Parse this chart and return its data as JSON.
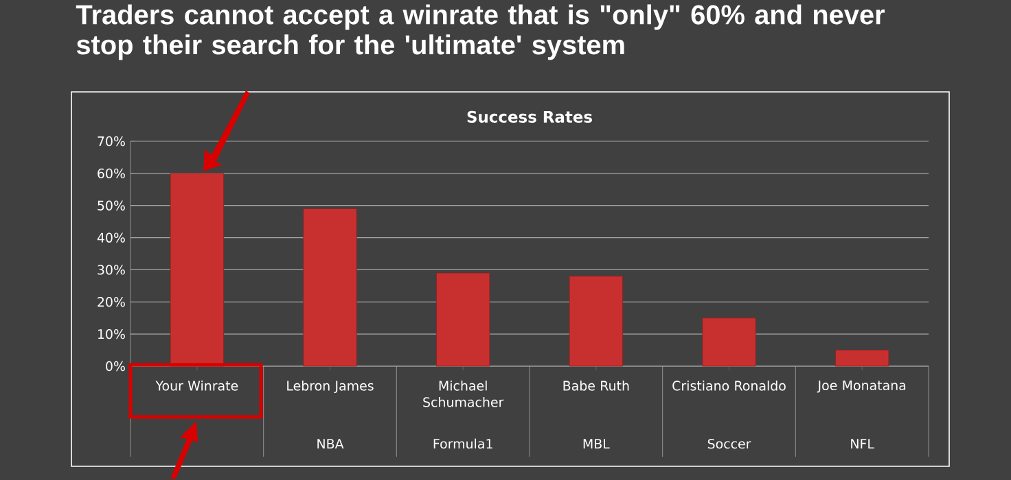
{
  "chart_data": {
    "type": "bar",
    "title": "Success Rates",
    "categories": [
      "Your Winrate",
      "Lebron James",
      "Michael Schumacher",
      "Babe Ruth",
      "Cristiano Ronaldo",
      "Joe Monatana"
    ],
    "values": [
      60,
      49,
      29,
      28,
      15,
      5
    ],
    "color": "#c8302f",
    "ylim": [
      0,
      70
    ],
    "yticks": [
      {
        "value": 0,
        "label": "0%"
      },
      {
        "value": 10,
        "label": "10%"
      },
      {
        "value": 20,
        "label": "20%"
      },
      {
        "value": 30,
        "label": "30%"
      },
      {
        "value": 40,
        "label": "40%"
      },
      {
        "value": 50,
        "label": "50%"
      },
      {
        "value": 60,
        "label": "60%"
      },
      {
        "value": 70,
        "label": "70%"
      }
    ],
    "grid": "y",
    "annotations": [
      "Traders cannot accept a winrate that is \"only\" 60% and never stop their search for the 'ultimate' system",
      "NBA",
      "Formula1",
      "MBL",
      "Soccer",
      "NFL"
    ]
  }
}
